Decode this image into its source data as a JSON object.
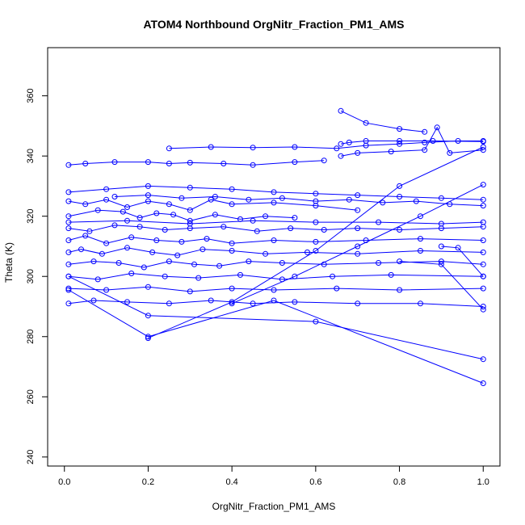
{
  "chart_data": {
    "type": "line",
    "title": "ATOM4 Northbound OrgNitr_Fraction_PM1_AMS",
    "xlabel": "OrgNitr_Fraction_PM1_AMS",
    "ylabel": "Theta (K)",
    "xlim": [
      -0.04,
      1.04
    ],
    "ylim": [
      237,
      376
    ],
    "x_ticks": [
      "0.0",
      "0.2",
      "0.4",
      "0.6",
      "0.8",
      "1.0"
    ],
    "x_tick_values": [
      0.0,
      0.2,
      0.4,
      0.6,
      0.8,
      1.0
    ],
    "y_ticks": [
      "240",
      "260",
      "280",
      "300",
      "320",
      "340",
      "360"
    ],
    "y_tick_values": [
      240,
      260,
      280,
      300,
      320,
      340,
      360
    ],
    "marker": "open-circle",
    "color": "#0000ff",
    "grid": false,
    "series": [
      {
        "x": [
          0.01,
          0.05,
          0.12,
          0.2,
          0.25,
          0.3,
          0.38,
          0.45,
          0.55,
          0.62
        ],
        "y": [
          337.0,
          337.5,
          338.0,
          338.0,
          337.5,
          337.8,
          337.5,
          337.0,
          338.0,
          338.5
        ]
      },
      {
        "x": [
          0.25,
          0.35,
          0.45,
          0.55,
          0.65,
          0.72,
          0.8,
          0.86,
          0.94,
          1.0
        ],
        "y": [
          342.5,
          343.0,
          342.8,
          343.0,
          342.5,
          343.5,
          344.0,
          344.5,
          345.0,
          345.0
        ]
      },
      {
        "x": [
          0.66,
          0.68,
          0.72,
          0.8,
          0.88,
          1.0
        ],
        "y": [
          344.0,
          344.5,
          345.0,
          345.0,
          345.0,
          344.8
        ]
      },
      {
        "x": [
          0.66,
          0.72,
          0.8,
          0.86
        ],
        "y": [
          355.0,
          351.0,
          349.0,
          348.0
        ]
      },
      {
        "x": [
          0.66,
          0.7,
          0.78,
          0.86,
          0.89,
          0.92,
          1.0
        ],
        "y": [
          340.0,
          341.0,
          341.5,
          342.0,
          349.5,
          341.0,
          342.0
        ]
      },
      {
        "x": [
          0.01,
          0.1,
          0.2,
          0.3,
          0.4,
          0.5,
          0.6,
          0.7,
          0.8,
          0.9,
          1.0
        ],
        "y": [
          328.0,
          329.0,
          330.0,
          329.5,
          329.0,
          328.0,
          327.5,
          327.0,
          326.5,
          326.0,
          325.5
        ]
      },
      {
        "x": [
          0.01,
          0.05,
          0.1,
          0.15,
          0.2,
          0.25,
          0.3,
          0.35,
          0.4,
          0.5,
          0.6,
          0.7
        ],
        "y": [
          325.0,
          324.0,
          325.5,
          323.0,
          325.0,
          324.0,
          322.0,
          325.5,
          324.0,
          324.5,
          323.5,
          322.0
        ]
      },
      {
        "x": [
          0.01,
          0.08,
          0.14,
          0.18,
          0.22,
          0.26,
          0.3,
          0.36,
          0.42,
          0.48,
          0.55
        ],
        "y": [
          320.0,
          322.0,
          321.5,
          319.5,
          321.0,
          320.5,
          318.5,
          320.5,
          319.0,
          320.0,
          319.5
        ]
      },
      {
        "x": [
          0.01,
          0.06,
          0.12,
          0.18,
          0.24,
          0.3,
          0.38,
          0.46,
          0.54,
          0.62,
          0.7,
          0.8,
          0.9,
          1.0
        ],
        "y": [
          316.0,
          315.0,
          317.0,
          316.5,
          315.5,
          316.0,
          316.5,
          315.0,
          316.0,
          315.5,
          316.0,
          315.5,
          316.0,
          316.5
        ]
      },
      {
        "x": [
          0.01,
          0.05,
          0.1,
          0.16,
          0.22,
          0.28,
          0.34,
          0.4,
          0.5,
          0.6,
          0.72,
          0.85,
          1.0
        ],
        "y": [
          312.0,
          313.5,
          311.0,
          313.0,
          312.0,
          311.5,
          312.5,
          311.0,
          312.0,
          311.5,
          312.0,
          312.5,
          312.0
        ]
      },
      {
        "x": [
          0.01,
          0.04,
          0.09,
          0.15,
          0.21,
          0.27,
          0.33,
          0.4,
          0.48,
          0.58,
          0.7,
          0.85,
          1.0
        ],
        "y": [
          308.0,
          309.0,
          307.5,
          309.5,
          308.0,
          307.0,
          309.0,
          308.5,
          307.5,
          308.0,
          307.5,
          308.5,
          308.0
        ]
      },
      {
        "x": [
          0.01,
          0.07,
          0.13,
          0.19,
          0.25,
          0.31,
          0.37,
          0.44,
          0.52,
          0.62,
          0.75,
          0.9,
          1.0
        ],
        "y": [
          304.0,
          305.0,
          304.5,
          303.0,
          305.0,
          304.0,
          303.5,
          305.0,
          304.5,
          304.0,
          304.5,
          305.0,
          304.0
        ]
      },
      {
        "x": [
          0.01,
          0.08,
          0.16,
          0.24,
          0.32,
          0.42,
          0.52,
          0.64,
          0.78,
          1.0
        ],
        "y": [
          300.0,
          299.0,
          301.0,
          300.0,
          299.5,
          300.5,
          299.0,
          300.0,
          300.5,
          300.0
        ]
      },
      {
        "x": [
          0.01,
          0.1,
          0.2,
          0.3,
          0.4,
          0.5,
          0.65,
          0.8,
          1.0
        ],
        "y": [
          296.0,
          295.5,
          296.5,
          295.0,
          296.0,
          295.5,
          296.0,
          295.5,
          296.0
        ]
      },
      {
        "x": [
          0.01,
          0.07,
          0.15,
          0.25,
          0.35,
          0.45,
          0.55,
          0.7,
          0.85,
          1.0
        ],
        "y": [
          291.0,
          292.0,
          291.5,
          291.0,
          292.0,
          291.0,
          291.5,
          291.0,
          291.0,
          290.0
        ]
      },
      {
        "x": [
          0.01,
          0.2,
          0.5,
          1.0
        ],
        "y": [
          295.5,
          280.0,
          292.0,
          264.5
        ]
      },
      {
        "x": [
          0.01,
          0.2,
          0.6,
          1.0
        ],
        "y": [
          300.0,
          287.0,
          285.0,
          272.5
        ]
      },
      {
        "x": [
          0.2,
          0.4,
          0.6,
          0.8,
          1.0
        ],
        "y": [
          279.5,
          291.5,
          308.5,
          330.0,
          343.0
        ]
      },
      {
        "x": [
          0.4,
          0.55,
          0.7,
          0.85,
          1.0
        ],
        "y": [
          291.0,
          300.0,
          310.0,
          320.0,
          330.5
        ]
      },
      {
        "x": [
          0.01,
          0.15,
          0.3,
          0.45,
          0.6,
          0.75,
          0.9,
          1.0
        ],
        "y": [
          318.0,
          318.5,
          317.5,
          318.5,
          318.0,
          318.0,
          317.5,
          318.0
        ]
      },
      {
        "x": [
          0.12,
          0.2,
          0.28,
          0.36,
          0.44,
          0.52,
          0.6,
          0.68,
          0.76,
          0.84,
          0.92,
          1.0
        ],
        "y": [
          326.5,
          327.0,
          326.0,
          326.5,
          325.5,
          326.0,
          325.0,
          325.5,
          324.5,
          325.0,
          324.0,
          323.5
        ]
      },
      {
        "x": [
          0.9,
          0.94,
          1.0
        ],
        "y": [
          310.0,
          309.5,
          300.0
        ]
      },
      {
        "x": [
          0.8,
          0.9,
          1.0
        ],
        "y": [
          305.0,
          304.0,
          289.0
        ]
      }
    ]
  }
}
